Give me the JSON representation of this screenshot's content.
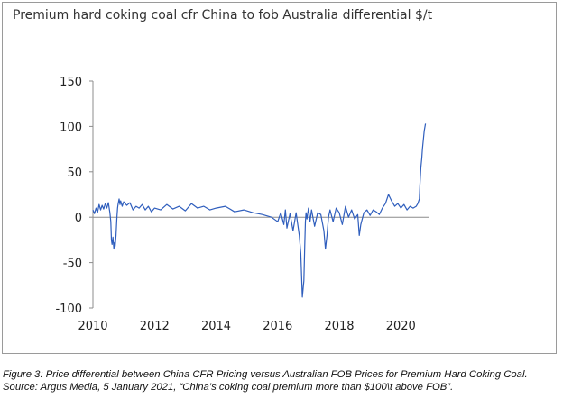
{
  "chart_data": {
    "type": "line",
    "title": "Premium hard coking coal cfr China to fob Australia differential $/t",
    "xlabel": "",
    "ylabel": "",
    "xlim": [
      2010,
      2020.9
    ],
    "ylim": [
      -100,
      150
    ],
    "x_ticks": [
      "2010",
      "2012",
      "2014",
      "2016",
      "2018",
      "2020"
    ],
    "y_ticks": [
      "150",
      "100",
      "50",
      "0",
      "-50",
      "-100"
    ],
    "grid": false,
    "legend": "none",
    "line_color": "#2f5ebd",
    "series": [
      {
        "x": [
          2010.0,
          2010.05,
          2010.1,
          2010.15,
          2010.2,
          2010.25,
          2010.3,
          2010.35,
          2010.4,
          2010.45,
          2010.5,
          2010.55,
          2010.58,
          2010.6,
          2010.62,
          2010.65,
          2010.68,
          2010.7,
          2010.72,
          2010.75,
          2010.78,
          2010.8,
          2010.82,
          2010.85,
          2010.88,
          2010.9,
          2010.95,
          2011.0,
          2011.1,
          2011.2,
          2011.3,
          2011.4,
          2011.5,
          2011.6,
          2011.7,
          2011.8,
          2011.9,
          2012.0,
          2012.2,
          2012.4,
          2012.6,
          2012.8,
          2013.0,
          2013.2,
          2013.4,
          2013.6,
          2013.8,
          2014.0,
          2014.3,
          2014.6,
          2014.9,
          2015.2,
          2015.5,
          2015.8,
          2016.0,
          2016.1,
          2016.2,
          2016.25,
          2016.3,
          2016.4,
          2016.5,
          2016.6,
          2016.7,
          2016.75,
          2016.8,
          2016.85,
          2016.88,
          2016.9,
          2016.92,
          2016.95,
          2017.0,
          2017.05,
          2017.1,
          2017.2,
          2017.3,
          2017.4,
          2017.5,
          2017.55,
          2017.6,
          2017.65,
          2017.7,
          2017.8,
          2017.9,
          2018.0,
          2018.1,
          2018.2,
          2018.3,
          2018.4,
          2018.5,
          2018.6,
          2018.65,
          2018.7,
          2018.8,
          2018.9,
          2019.0,
          2019.1,
          2019.2,
          2019.3,
          2019.4,
          2019.5,
          2019.6,
          2019.7,
          2019.8,
          2019.9,
          2020.0,
          2020.1,
          2020.2,
          2020.3,
          2020.4,
          2020.5,
          2020.55,
          2020.6,
          2020.62,
          2020.65,
          2020.68,
          2020.7,
          2020.73,
          2020.76,
          2020.8
        ],
        "y": [
          8,
          4,
          10,
          5,
          14,
          8,
          13,
          9,
          15,
          10,
          16,
          5,
          -5,
          -25,
          -30,
          -22,
          -35,
          -28,
          -32,
          -20,
          0,
          10,
          15,
          20,
          14,
          18,
          12,
          17,
          13,
          16,
          8,
          12,
          10,
          14,
          8,
          12,
          6,
          10,
          8,
          14,
          9,
          12,
          7,
          15,
          10,
          12,
          8,
          10,
          12,
          6,
          8,
          5,
          3,
          0,
          -5,
          5,
          -8,
          8,
          -12,
          4,
          -15,
          5,
          -20,
          -40,
          -88,
          -70,
          -30,
          -5,
          5,
          -2,
          10,
          -5,
          8,
          -10,
          5,
          3,
          -15,
          -35,
          -20,
          0,
          8,
          -5,
          10,
          5,
          -8,
          12,
          0,
          8,
          -2,
          3,
          -20,
          -8,
          5,
          8,
          2,
          8,
          6,
          3,
          10,
          15,
          25,
          18,
          12,
          15,
          10,
          14,
          8,
          12,
          10,
          12,
          15,
          20,
          35,
          55,
          65,
          75,
          85,
          95,
          103
        ]
      }
    ]
  },
  "caption": "Figure 3: Price differential between China CFR Pricing versus Australian FOB Prices for Premium Hard Coking Coal.  Source: Argus Media, 5 January 2021, “China’s coking coal premium more than $100\\t above FOB”."
}
